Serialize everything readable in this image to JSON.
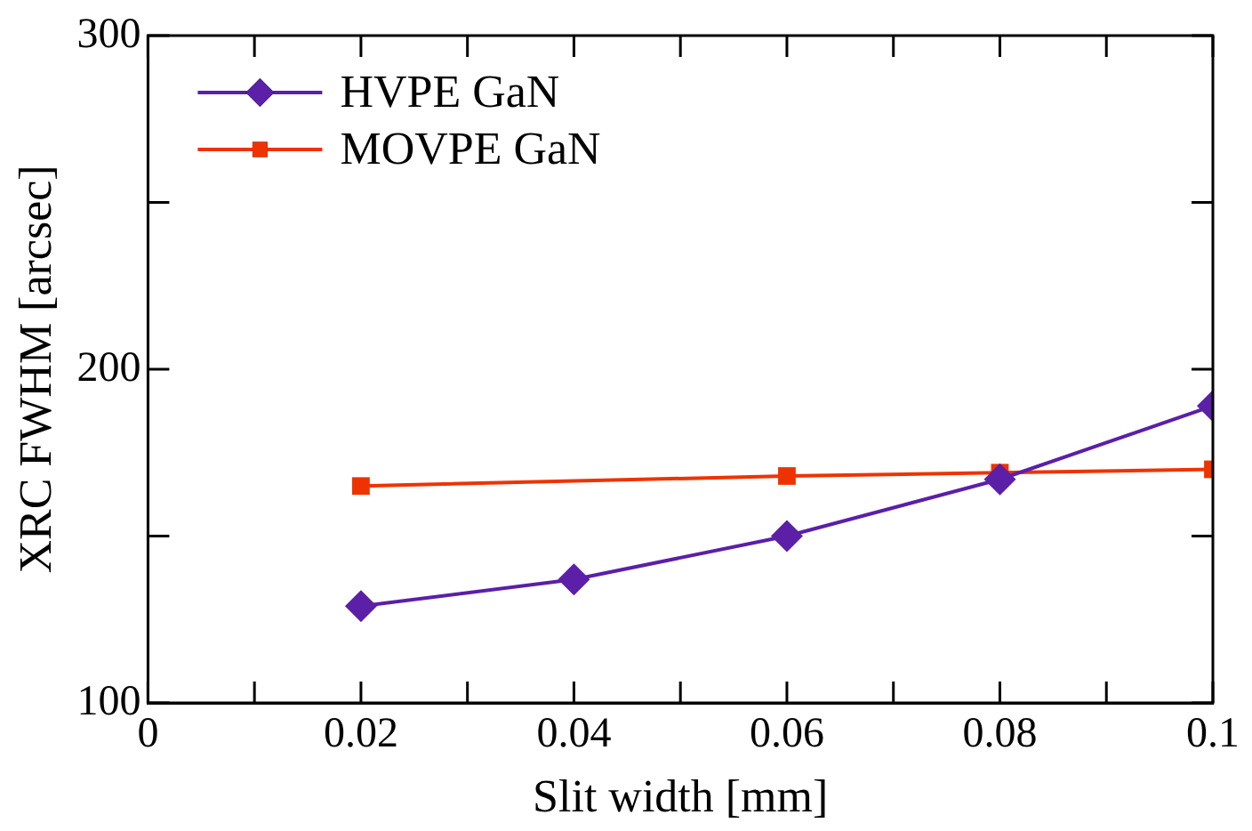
{
  "chart_data": {
    "type": "line",
    "xlabel": "Slit width [mm]",
    "ylabel": "XRC FWHM [arcsec]",
    "xlim": [
      0,
      0.1
    ],
    "ylim": [
      100,
      300
    ],
    "xticks": [
      0,
      {
        "value": 0.01,
        "label": null
      },
      0.02,
      {
        "value": 0.03,
        "label": null
      },
      0.04,
      {
        "value": 0.05,
        "label": null
      },
      0.06,
      {
        "value": 0.07,
        "label": null
      },
      0.08,
      {
        "value": 0.09,
        "label": null
      },
      0.1
    ],
    "yticks": [
      100,
      {
        "value": 150,
        "label": null
      },
      200,
      {
        "value": 250,
        "label": null
      },
      300
    ],
    "series": [
      {
        "name": "HVPE GaN",
        "color": "#5b1fa8",
        "marker": "diamond",
        "x": [
          0.02,
          0.04,
          0.06,
          0.08,
          0.1
        ],
        "values": [
          129,
          137,
          150,
          167,
          189
        ]
      },
      {
        "name": "MOVPE GaN",
        "color": "#ee3300",
        "marker": "square",
        "x": [
          0.02,
          0.06,
          0.08,
          0.1
        ],
        "values": [
          165,
          168,
          169,
          170
        ]
      }
    ],
    "legend": "top left",
    "grid": false
  }
}
